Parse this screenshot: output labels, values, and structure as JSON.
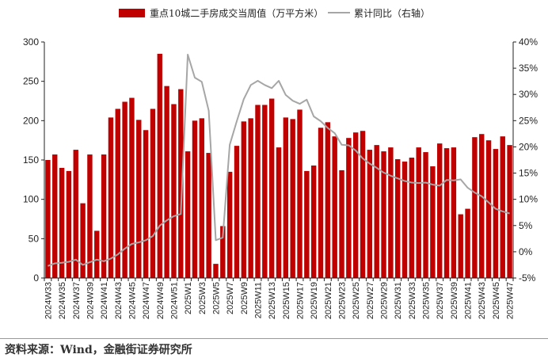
{
  "chart_data": {
    "type": "bar+line",
    "categories": [
      "2024W33",
      "2024W34",
      "2024W35",
      "2024W36",
      "2024W37",
      "2024W38",
      "2024W39",
      "2024W40",
      "2024W41",
      "2024W42",
      "2024W43",
      "2024W44",
      "2024W45",
      "2024W46",
      "2024W47",
      "2024W48",
      "2024W49",
      "2024W50",
      "2024W51",
      "2024W52",
      "2025W1",
      "2025W2",
      "2025W3",
      "2025W4",
      "2025W5",
      "2025W6",
      "2025W7",
      "2025W8",
      "2025W9",
      "2025W10",
      "2025W11",
      "2025W12",
      "2025W13",
      "2025W14",
      "2025W15",
      "2025W16",
      "2025W17",
      "2025W18",
      "2025W19",
      "2025W20",
      "2025W21",
      "2025W22",
      "2025W23",
      "2025W24",
      "2025W25",
      "2025W26",
      "2025W27",
      "2025W28",
      "2025W29",
      "2025W30",
      "2025W31",
      "2025W32",
      "2025W33",
      "2025W34",
      "2025W35",
      "2025W36",
      "2025W37",
      "2025W38",
      "2025W39",
      "2025W40",
      "2025W41",
      "2025W42",
      "2025W43",
      "2025W44",
      "2025W45",
      "2025W46",
      "2025W47"
    ],
    "series": [
      {
        "name": "重点10城二手房成交当周值（万平方米）",
        "type": "bar",
        "axis": "left",
        "color": "#C00000",
        "values": [
          150,
          157,
          140,
          136,
          163,
          95,
          157,
          60,
          157,
          204,
          215,
          224,
          229,
          201,
          188,
          215,
          285,
          244,
          221,
          240,
          161,
          200,
          203,
          159,
          18,
          66,
          135,
          168,
          199,
          203,
          220,
          220,
          228,
          166,
          204,
          202,
          214,
          136,
          143,
          191,
          198,
          180,
          137,
          178,
          185,
          187,
          163,
          169,
          161,
          166,
          151,
          148,
          153,
          166,
          160,
          142,
          171,
          165,
          166,
          81,
          88,
          179,
          183,
          175,
          164,
          180,
          169
        ]
      },
      {
        "name": "累计同比（右轴）",
        "type": "line",
        "axis": "right",
        "color": "#A6A6A6",
        "values": [
          -2.7,
          -2.2,
          -2.1,
          -1.9,
          -1.5,
          -2.5,
          -2.0,
          -1.5,
          -1.8,
          -1.3,
          -0.5,
          0.6,
          1.5,
          1.8,
          2.2,
          3.0,
          5.0,
          6.0,
          6.8,
          7.2,
          37.6,
          33.2,
          32.4,
          26.9,
          2.2,
          2.7,
          20.4,
          24.9,
          29.1,
          31.8,
          32.6,
          31.8,
          31.2,
          32.6,
          29.9,
          28.8,
          28.2,
          29.0,
          25.8,
          24.9,
          23.6,
          22.6,
          20.4,
          20.3,
          19.3,
          17.8,
          16.8,
          16.0,
          15.1,
          14.5,
          14.0,
          13.5,
          13.2,
          13.1,
          13.2,
          12.8,
          12.6,
          13.7,
          13.6,
          13.8,
          12.2,
          11.3,
          10.6,
          9.4,
          8.2,
          7.7,
          7.3
        ]
      }
    ],
    "y_left": {
      "range": [
        0,
        300
      ],
      "ticks": [
        "0",
        "50",
        "100",
        "150",
        "200",
        "250",
        "300"
      ]
    },
    "y_right": {
      "range": [
        -5,
        40
      ],
      "ticks": [
        "-5%",
        "0%",
        "5%",
        "10%",
        "15%",
        "20%",
        "25%",
        "30%",
        "35%",
        "40%"
      ]
    },
    "x_tick_labels": [
      "2024W33",
      "2024W35",
      "2024W37",
      "2024W39",
      "2024W41",
      "2024W43",
      "2024W45",
      "2024W47",
      "2024W49",
      "2024W51",
      "2025W1",
      "2025W3",
      "2025W5",
      "2025W7",
      "2025W9",
      "2025W11",
      "2025W13",
      "2025W15",
      "2025W17",
      "2025W19",
      "2025W21",
      "2025W23",
      "2025W25",
      "2025W27",
      "2025W29",
      "2025W31",
      "2025W33",
      "2025W35",
      "2025W37",
      "2025W39",
      "2025W41",
      "2025W43",
      "2025W45",
      "2025W47"
    ],
    "legend": {
      "placement": "top-center",
      "bar_label": "重点10城二手房成交当周值（万平方米）",
      "line_label": "累计同比（右轴）"
    },
    "grid": false
  },
  "source": "资料来源：Wind，金融街证券研究所"
}
